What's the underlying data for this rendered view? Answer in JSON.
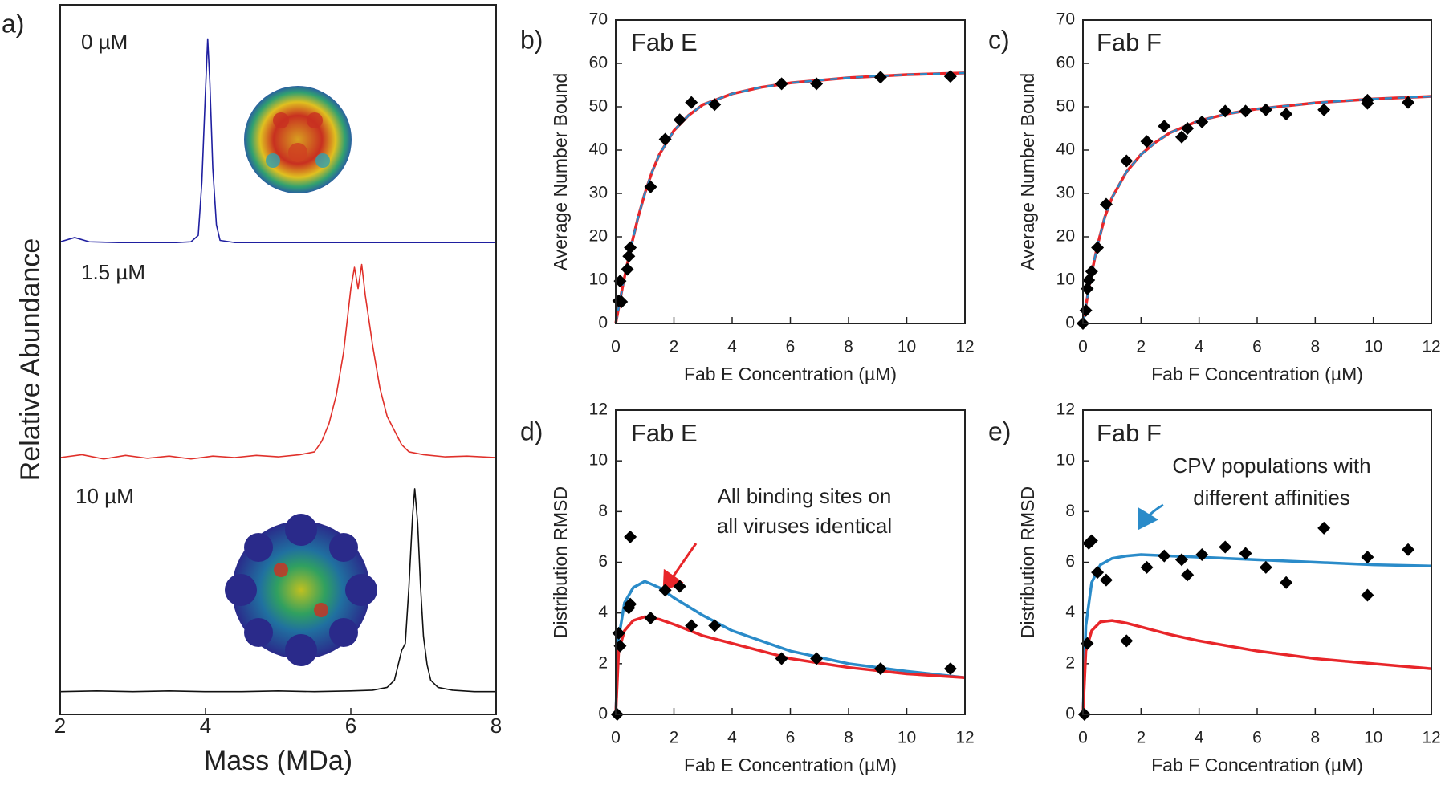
{
  "chart_data": [
    {
      "type": "line",
      "panel_label": "a)",
      "xlabel": "Mass (MDa)",
      "ylabel": "Relative Abundance",
      "xlim": [
        2,
        8
      ],
      "xticks": [
        2,
        4,
        6,
        8
      ],
      "ylim": [
        0,
        100
      ],
      "annotations": [
        "0 µM",
        "1.5 µM",
        "10 µM"
      ],
      "series": [
        {
          "color": "#1f1fa0",
          "x": [
            2,
            2.2,
            2.4,
            2.8,
            3.2,
            3.6,
            3.8,
            3.9,
            3.95,
            4.0,
            4.03,
            4.06,
            4.1,
            4.15,
            4.2,
            4.4,
            5,
            6,
            7,
            8
          ],
          "values": [
            66.6,
            67.2,
            66.6,
            66.5,
            66.5,
            66.5,
            66.6,
            67.5,
            75,
            88,
            95.2,
            89,
            77,
            69,
            66.8,
            66.5,
            66.5,
            66.5,
            66.5,
            66.5
          ]
        },
        {
          "color": "#e0302a",
          "x": [
            2,
            2.3,
            2.6,
            2.9,
            3.2,
            3.5,
            3.8,
            4.1,
            4.4,
            4.7,
            5.0,
            5.3,
            5.5,
            5.6,
            5.7,
            5.8,
            5.9,
            6.0,
            6.05,
            6.1,
            6.15,
            6.2,
            6.3,
            6.4,
            6.5,
            6.6,
            6.7,
            6.8,
            7.0,
            7.3,
            7.6,
            8
          ],
          "values": [
            36.2,
            36.6,
            36.0,
            36.5,
            36.1,
            36.4,
            36.0,
            36.4,
            36.2,
            36.5,
            36.3,
            36.6,
            37,
            38.5,
            41,
            45,
            51,
            60,
            63,
            60,
            63.4,
            59,
            52,
            46,
            42,
            40,
            38,
            37,
            36.6,
            36.3,
            36.4,
            36.2
          ]
        },
        {
          "color": "#111111",
          "x": [
            2,
            2.5,
            3,
            3.5,
            4,
            4.5,
            5,
            5.5,
            6,
            6.3,
            6.5,
            6.6,
            6.7,
            6.75,
            6.8,
            6.85,
            6.88,
            6.92,
            6.96,
            7.0,
            7.05,
            7.1,
            7.2,
            7.4,
            7.7,
            8
          ],
          "values": [
            3.2,
            3.3,
            3.2,
            3.3,
            3.2,
            3.2,
            3.3,
            3.2,
            3.3,
            3.4,
            3.8,
            4.8,
            9,
            10,
            18,
            28,
            31.8,
            27,
            18,
            11,
            7,
            4.8,
            3.8,
            3.4,
            3.2,
            3.2
          ]
        }
      ]
    },
    {
      "type": "scatter",
      "panel_label": "b)",
      "title": "Fab E",
      "xlabel": "Fab E Concentration (µM)",
      "ylabel": "Average Number Bound",
      "xlim": [
        0,
        12
      ],
      "xticks": [
        0,
        2,
        4,
        6,
        8,
        10,
        12
      ],
      "ylim": [
        0,
        70
      ],
      "yticks": [
        0,
        10,
        20,
        30,
        40,
        50,
        60,
        70
      ],
      "series": [
        {
          "type": "line",
          "color": "#e8262a",
          "x": [
            0,
            0.25,
            0.5,
            0.75,
            1,
            1.25,
            1.5,
            2,
            2.5,
            3,
            4,
            5,
            6,
            8,
            10,
            12
          ],
          "values": [
            0,
            9,
            17,
            24,
            30,
            35,
            39,
            44.5,
            48,
            50.5,
            53,
            54.5,
            55.5,
            56.7,
            57.4,
            57.8
          ]
        },
        {
          "type": "line",
          "color": "#2a8bc9",
          "dash": true,
          "x": [
            0,
            0.25,
            0.5,
            0.75,
            1,
            1.25,
            1.5,
            2,
            2.5,
            3,
            4,
            5,
            6,
            8,
            10,
            12
          ],
          "values": [
            0,
            9,
            17,
            24,
            30,
            35,
            39,
            44.5,
            48,
            50.5,
            53,
            54.5,
            55.5,
            56.7,
            57.4,
            57.8
          ]
        },
        {
          "type": "scatter",
          "color": "#000000",
          "x": [
            0.1,
            0.15,
            0.2,
            0.4,
            0.45,
            0.5,
            1.2,
            1.7,
            2.2,
            2.6,
            3.4,
            5.7,
            6.9,
            9.1,
            11.5
          ],
          "values": [
            5.2,
            9.8,
            5,
            12.5,
            15.5,
            17.5,
            31.5,
            42.5,
            47,
            51,
            50.5,
            55.3,
            55.3,
            56.8,
            57
          ]
        }
      ]
    },
    {
      "type": "scatter",
      "panel_label": "c)",
      "title": "Fab F",
      "xlabel": "Fab F Concentration (µM)",
      "ylabel": "Average Number Bound",
      "xlim": [
        0,
        12
      ],
      "xticks": [
        0,
        2,
        4,
        6,
        8,
        10,
        12
      ],
      "ylim": [
        0,
        70
      ],
      "yticks": [
        0,
        10,
        20,
        30,
        40,
        50,
        60,
        70
      ],
      "series": [
        {
          "type": "line",
          "color": "#e8262a",
          "x": [
            0,
            0.25,
            0.5,
            0.75,
            1,
            1.5,
            2,
            2.5,
            3,
            4,
            5,
            6,
            8,
            10,
            12
          ],
          "values": [
            0,
            10,
            18,
            24.5,
            29,
            35,
            39,
            41.8,
            44,
            46.8,
            48.4,
            49.5,
            50.9,
            51.8,
            52.4
          ]
        },
        {
          "type": "line",
          "color": "#2a8bc9",
          "dash": true,
          "x": [
            0,
            0.25,
            0.5,
            0.75,
            1,
            1.5,
            2,
            2.5,
            3,
            4,
            5,
            6,
            8,
            10,
            12
          ],
          "values": [
            0,
            10,
            18,
            24.5,
            29,
            35,
            39,
            41.8,
            44,
            46.8,
            48.4,
            49.5,
            50.9,
            51.8,
            52.4
          ]
        },
        {
          "type": "scatter",
          "color": "#000000",
          "x": [
            0,
            0.1,
            0.15,
            0.2,
            0.3,
            0.5,
            0.8,
            1.5,
            2.2,
            2.8,
            3.4,
            3.6,
            4.1,
            4.9,
            5.6,
            6.3,
            7,
            8.3,
            9.8,
            9.8,
            11.2
          ],
          "values": [
            0,
            3,
            8,
            10,
            12,
            17.5,
            27.5,
            37.5,
            42,
            45.5,
            43,
            45,
            46.5,
            49,
            49,
            49.3,
            48.3,
            49.3,
            51.5,
            50.8,
            51
          ]
        }
      ]
    },
    {
      "type": "scatter",
      "panel_label": "d)",
      "title": "Fab E",
      "xlabel": "Fab E Concentration (µM)",
      "ylabel": "Distribution RMSD",
      "xlim": [
        0,
        12
      ],
      "xticks": [
        0,
        2,
        4,
        6,
        8,
        10,
        12
      ],
      "ylim": [
        0,
        12
      ],
      "yticks": [
        0,
        2,
        4,
        6,
        8,
        10,
        12
      ],
      "annotation_lines": [
        "All binding sites on",
        "all viruses identical"
      ],
      "series": [
        {
          "type": "line",
          "color": "#2a8bc9",
          "x": [
            0,
            0.1,
            0.3,
            0.6,
            1,
            1.5,
            2,
            3,
            4,
            6,
            8,
            10,
            12
          ],
          "values": [
            0,
            3,
            4.4,
            5.0,
            5.25,
            5.0,
            4.6,
            3.9,
            3.3,
            2.5,
            2.0,
            1.7,
            1.45
          ]
        },
        {
          "type": "line",
          "color": "#e8262a",
          "x": [
            0,
            0.1,
            0.3,
            0.6,
            1,
            1.5,
            2,
            3,
            4,
            6,
            8,
            10,
            12
          ],
          "values": [
            0,
            2.5,
            3.3,
            3.7,
            3.85,
            3.75,
            3.55,
            3.1,
            2.8,
            2.2,
            1.85,
            1.6,
            1.45
          ]
        },
        {
          "type": "scatter",
          "color": "#000000",
          "x": [
            0.05,
            0.1,
            0.15,
            0.45,
            0.5,
            0.5,
            1.2,
            1.7,
            2.2,
            2.6,
            3.4,
            5.7,
            6.9,
            9.1,
            11.5
          ],
          "values": [
            0,
            3.2,
            2.7,
            4.2,
            4.35,
            7.0,
            3.8,
            4.9,
            5.05,
            3.5,
            3.5,
            2.2,
            2.2,
            1.8,
            1.8
          ]
        }
      ]
    },
    {
      "type": "scatter",
      "panel_label": "e)",
      "title": "Fab F",
      "xlabel": "Fab F Concentration (µM)",
      "ylabel": "Distribution RMSD",
      "xlim": [
        0,
        12
      ],
      "xticks": [
        0,
        2,
        4,
        6,
        8,
        10,
        12
      ],
      "ylim": [
        0,
        12
      ],
      "yticks": [
        0,
        2,
        4,
        6,
        8,
        10,
        12
      ],
      "annotation_lines": [
        "CPV populations with",
        "different affinities"
      ],
      "series": [
        {
          "type": "line",
          "color": "#2a8bc9",
          "x": [
            0,
            0.1,
            0.3,
            0.6,
            1,
            1.5,
            2,
            3,
            4,
            6,
            8,
            10,
            12
          ],
          "values": [
            0,
            3.5,
            5.2,
            5.9,
            6.15,
            6.25,
            6.3,
            6.25,
            6.2,
            6.1,
            6.0,
            5.9,
            5.85
          ]
        },
        {
          "type": "line",
          "color": "#e8262a",
          "x": [
            0,
            0.1,
            0.3,
            0.6,
            1,
            1.5,
            2,
            3,
            4,
            6,
            8,
            10,
            12
          ],
          "values": [
            0,
            2.5,
            3.3,
            3.65,
            3.7,
            3.6,
            3.45,
            3.15,
            2.9,
            2.5,
            2.2,
            2.0,
            1.8
          ]
        },
        {
          "type": "scatter",
          "color": "#000000",
          "x": [
            0.05,
            0.15,
            0.2,
            0.3,
            0.5,
            0.8,
            1.5,
            2.2,
            2.8,
            3.4,
            3.6,
            4.1,
            4.9,
            5.6,
            6.3,
            7,
            8.3,
            9.8,
            9.8,
            11.2
          ],
          "values": [
            0,
            2.8,
            6.75,
            6.85,
            5.6,
            5.3,
            2.9,
            5.8,
            6.25,
            6.1,
            5.5,
            6.3,
            6.6,
            6.35,
            5.8,
            5.2,
            7.35,
            6.2,
            4.7,
            6.5
          ]
        }
      ]
    }
  ]
}
